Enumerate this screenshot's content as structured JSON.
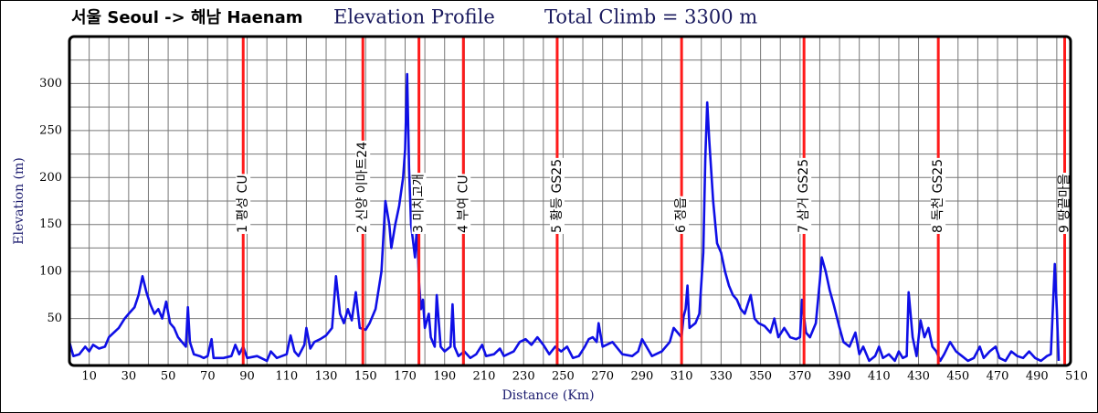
{
  "chart_data": {
    "type": "line",
    "title": "서울 Seoul -> 해남 Haenam",
    "subtitle": "Elevation Profile",
    "note": "Total Climb = 3300 m",
    "x_label": "Distance (Km)",
    "y_label": "Elevation (m)",
    "xlim": [
      0,
      507
    ],
    "ylim": [
      0,
      350
    ],
    "xticks": [
      10,
      30,
      50,
      70,
      90,
      110,
      130,
      150,
      170,
      190,
      210,
      230,
      250,
      270,
      290,
      310,
      330,
      350,
      370,
      390,
      410,
      430,
      450,
      470,
      490,
      510
    ],
    "yticks": [
      50,
      100,
      150,
      200,
      250,
      300
    ],
    "grid": true,
    "x_grid_step": 10,
    "y_grid_step": 25,
    "markers": [
      {
        "x": 88,
        "label": "1 평성 CU"
      },
      {
        "x": 148.6,
        "label": "2 신양 이마트24"
      },
      {
        "x": 177,
        "label": "3 미치고개"
      },
      {
        "x": 199.5,
        "label": "4 부여 CU"
      },
      {
        "x": 247,
        "label": "5 황등 GS25"
      },
      {
        "x": 310,
        "label": "6 정읍"
      },
      {
        "x": 372,
        "label": "7 삼거 GS25"
      },
      {
        "x": 440,
        "label": "8 독천 GS25"
      },
      {
        "x": 504,
        "label": "9 땅끝마을"
      }
    ],
    "marker_color": "#ff1a1a",
    "series": [
      {
        "name": "Elevation",
        "color": "#0f0fe6",
        "x": [
          0,
          2,
          5,
          8,
          10,
          12,
          15,
          18,
          20,
          25,
          28,
          30,
          33,
          35,
          37,
          39,
          41,
          43,
          45,
          47,
          49,
          51,
          53,
          55,
          57,
          59,
          60,
          61,
          63,
          66,
          68,
          70,
          72,
          73,
          78,
          82,
          84,
          86,
          88,
          90,
          95,
          100,
          102,
          105,
          110,
          112,
          114,
          116,
          119,
          120,
          122,
          124,
          127,
          130,
          133,
          135,
          137,
          139,
          141,
          143,
          145,
          147,
          150,
          152,
          155,
          158,
          160,
          162,
          163,
          165,
          167,
          169,
          170,
          171,
          172,
          173,
          175,
          176,
          177,
          178,
          179,
          180,
          182,
          183,
          185,
          186,
          188,
          190,
          193,
          194,
          195,
          197,
          200,
          203,
          206,
          209,
          211,
          215,
          218,
          220,
          225,
          228,
          231,
          234,
          237,
          240,
          243,
          246,
          249,
          252,
          255,
          258,
          261,
          263,
          265,
          267,
          268,
          270,
          275,
          280,
          285,
          288,
          290,
          295,
          300,
          304,
          306,
          308,
          310,
          311,
          312,
          313,
          314,
          317,
          319,
          321,
          322,
          323,
          324,
          326,
          328,
          330,
          332,
          334,
          336,
          338,
          340,
          342,
          345,
          347,
          349,
          352,
          355,
          357,
          359,
          362,
          365,
          368,
          370,
          371,
          373,
          375,
          378,
          380,
          381,
          383,
          385,
          387,
          390,
          392,
          395,
          398,
          400,
          402,
          405,
          408,
          410,
          412,
          415,
          418,
          420,
          422,
          424,
          425,
          427,
          429,
          431,
          433,
          435,
          437,
          439,
          441,
          443,
          446,
          449,
          452,
          455,
          458,
          461,
          463,
          466,
          469,
          471,
          474,
          477,
          480,
          483,
          486,
          489,
          492,
          495,
          497,
          499,
          500,
          501
        ],
        "values": [
          25,
          10,
          12,
          20,
          15,
          22,
          18,
          20,
          30,
          40,
          50,
          55,
          62,
          75,
          95,
          78,
          65,
          55,
          60,
          50,
          68,
          45,
          40,
          30,
          25,
          20,
          62,
          25,
          12,
          10,
          8,
          10,
          28,
          8,
          8,
          10,
          22,
          12,
          20,
          8,
          10,
          5,
          15,
          8,
          12,
          32,
          15,
          10,
          22,
          40,
          18,
          25,
          28,
          32,
          40,
          95,
          55,
          45,
          60,
          48,
          78,
          40,
          38,
          45,
          60,
          100,
          175,
          150,
          125,
          150,
          170,
          200,
          230,
          310,
          210,
          150,
          115,
          150,
          90,
          60,
          70,
          40,
          55,
          30,
          20,
          75,
          20,
          15,
          20,
          65,
          20,
          10,
          15,
          8,
          12,
          22,
          10,
          12,
          18,
          10,
          15,
          25,
          28,
          22,
          30,
          22,
          12,
          20,
          15,
          20,
          8,
          10,
          20,
          28,
          30,
          25,
          45,
          20,
          25,
          12,
          10,
          15,
          28,
          10,
          15,
          25,
          40,
          35,
          30,
          52,
          60,
          85,
          40,
          45,
          55,
          120,
          220,
          280,
          240,
          175,
          130,
          120,
          100,
          85,
          75,
          70,
          60,
          55,
          75,
          50,
          45,
          42,
          35,
          50,
          30,
          40,
          30,
          28,
          30,
          70,
          35,
          30,
          45,
          90,
          115,
          100,
          80,
          65,
          40,
          25,
          20,
          35,
          12,
          20,
          5,
          10,
          20,
          8,
          12,
          5,
          15,
          8,
          10,
          78,
          30,
          10,
          48,
          30,
          40,
          20,
          15,
          5,
          12,
          25,
          15,
          10,
          5,
          8,
          20,
          8,
          15,
          20,
          8,
          5,
          15,
          10,
          8,
          15,
          8,
          5,
          10,
          12,
          108,
          60,
          5
        ]
      }
    ]
  }
}
